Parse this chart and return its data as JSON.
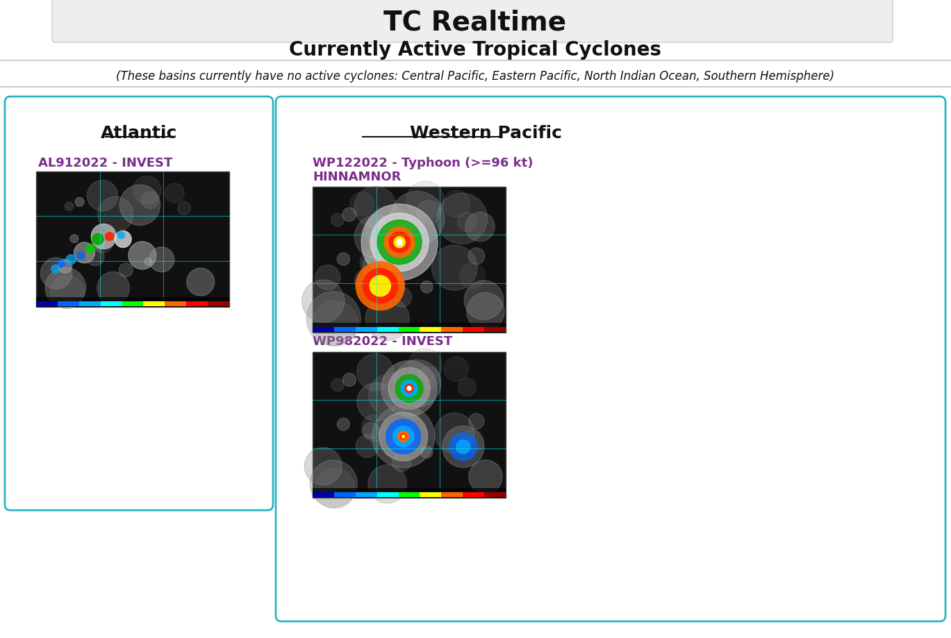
{
  "title": "TC Realtime",
  "subtitle": "Currently Active Tropical Cyclones",
  "inactive_note": "(These basins currently have no active cyclones: Central Pacific, Eastern Pacific, North Indian Ocean, Southern Hemisphere)",
  "background_color": "#ffffff",
  "title_bg_color": "#eeeeee",
  "panel_border_color": "#2cb5c0",
  "left_panel_title": "Atlantic",
  "right_panel_title": "Western Pacific",
  "left_link1": "AL912022 - INVEST",
  "right_link1": "WP122022 - Typhoon (>=96 kt)\nHINNAMNOR",
  "right_link2": "WP982022 - INVEST",
  "link_color": "#7b2d8b",
  "title_fontsize": 28,
  "subtitle_fontsize": 20,
  "note_fontsize": 12,
  "panel_title_fontsize": 18,
  "link_fontsize": 13,
  "satellite_img_color_atlantic": "#1a1a2e",
  "satellite_img_color_wp1": "#1a1a2e",
  "satellite_img_color_wp2": "#1a1a2e"
}
